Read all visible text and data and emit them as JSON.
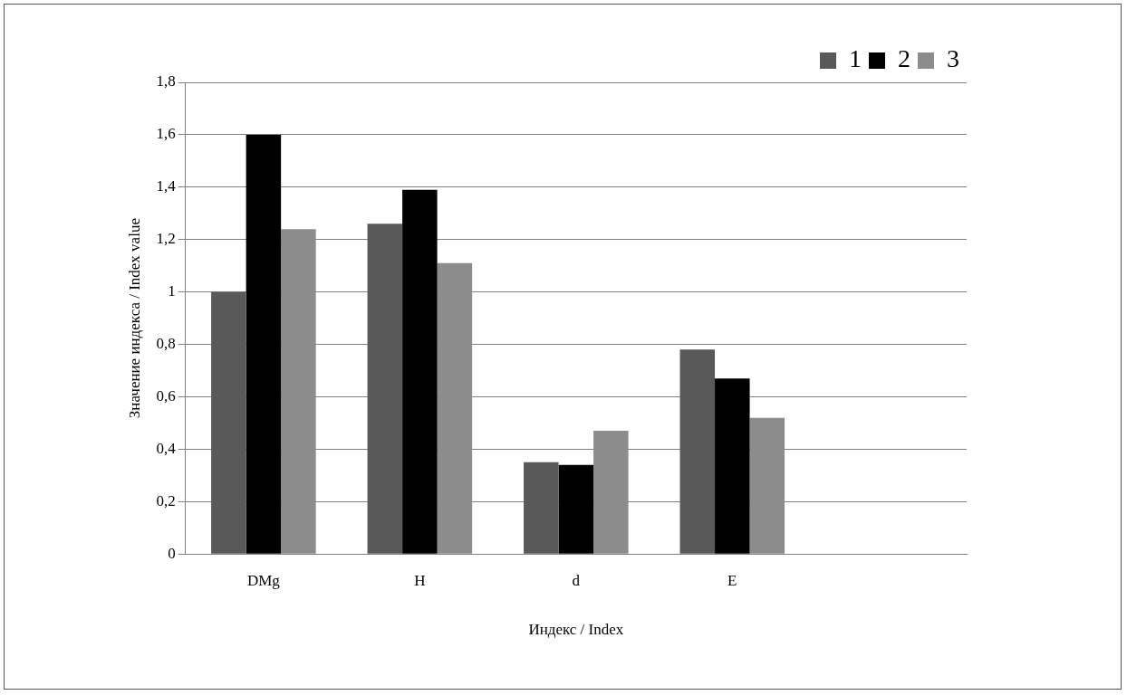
{
  "chart_data": {
    "type": "bar",
    "xlabel": "Индекс / Index",
    "ylabel": "Значение индекса / Index value",
    "categories": [
      "DMg",
      "H",
      "d",
      "E",
      null
    ],
    "series": [
      {
        "name": "1",
        "color": "#595959",
        "values": [
          1.0,
          1.26,
          0.35,
          0.78,
          null
        ]
      },
      {
        "name": "2",
        "color": "#000000",
        "values": [
          1.6,
          1.39,
          0.34,
          0.67,
          null
        ]
      },
      {
        "name": "3",
        "color": "#8c8c8c",
        "values": [
          1.24,
          1.11,
          0.47,
          0.52,
          null
        ]
      }
    ],
    "ylim": [
      0,
      1.8
    ],
    "yticks": [
      0,
      {
        "value": 0.2,
        "label": "0,2"
      },
      {
        "value": 0.4,
        "label": "0,4"
      },
      {
        "value": 0.6,
        "label": "0,6"
      },
      {
        "value": 0.8,
        "label": "0,8"
      },
      1,
      {
        "value": 1.2,
        "label": "1,2"
      },
      {
        "value": 1.4,
        "label": "1,4"
      },
      {
        "value": 1.6,
        "label": "1,6"
      },
      {
        "value": 1.8,
        "label": "1,8"
      }
    ],
    "grid": "y",
    "legend": "top right"
  }
}
